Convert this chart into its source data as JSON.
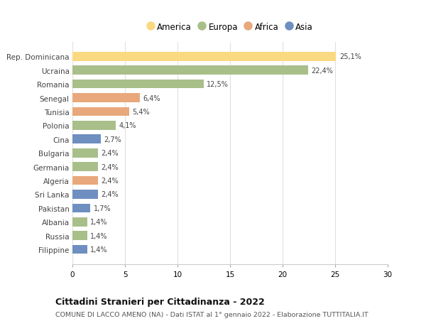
{
  "categories": [
    "Rep. Dominicana",
    "Ucraina",
    "Romania",
    "Senegal",
    "Tunisia",
    "Polonia",
    "Cina",
    "Bulgaria",
    "Germania",
    "Algeria",
    "Sri Lanka",
    "Pakistan",
    "Albania",
    "Russia",
    "Filippine"
  ],
  "values": [
    25.1,
    22.4,
    12.5,
    6.4,
    5.4,
    4.1,
    2.7,
    2.4,
    2.4,
    2.4,
    2.4,
    1.7,
    1.4,
    1.4,
    1.4
  ],
  "labels": [
    "25,1%",
    "22,4%",
    "12,5%",
    "6,4%",
    "5,4%",
    "4,1%",
    "2,7%",
    "2,4%",
    "2,4%",
    "2,4%",
    "2,4%",
    "1,7%",
    "1,4%",
    "1,4%",
    "1,4%"
  ],
  "colors": [
    "#FAD980",
    "#A8BF8A",
    "#A8BF8A",
    "#E8A87C",
    "#E8A87C",
    "#A8BF8A",
    "#6E8FC0",
    "#A8BF8A",
    "#A8BF8A",
    "#E8A87C",
    "#6E8FC0",
    "#6E8FC0",
    "#A8BF8A",
    "#A8BF8A",
    "#6E8FC0"
  ],
  "legend_labels": [
    "America",
    "Europa",
    "Africa",
    "Asia"
  ],
  "legend_colors": [
    "#FAD980",
    "#A8BF8A",
    "#E8A87C",
    "#6E8FC0"
  ],
  "title": "Cittadini Stranieri per Cittadinanza - 2022",
  "subtitle": "COMUNE DI LACCO AMENO (NA) - Dati ISTAT al 1° gennaio 2022 - Elaborazione TUTTITALIA.IT",
  "xlim": [
    0,
    30
  ],
  "xticks": [
    0,
    5,
    10,
    15,
    20,
    25,
    30
  ],
  "bg_color": "#ffffff",
  "grid_color": "#e0e0e0",
  "bar_height": 0.65
}
